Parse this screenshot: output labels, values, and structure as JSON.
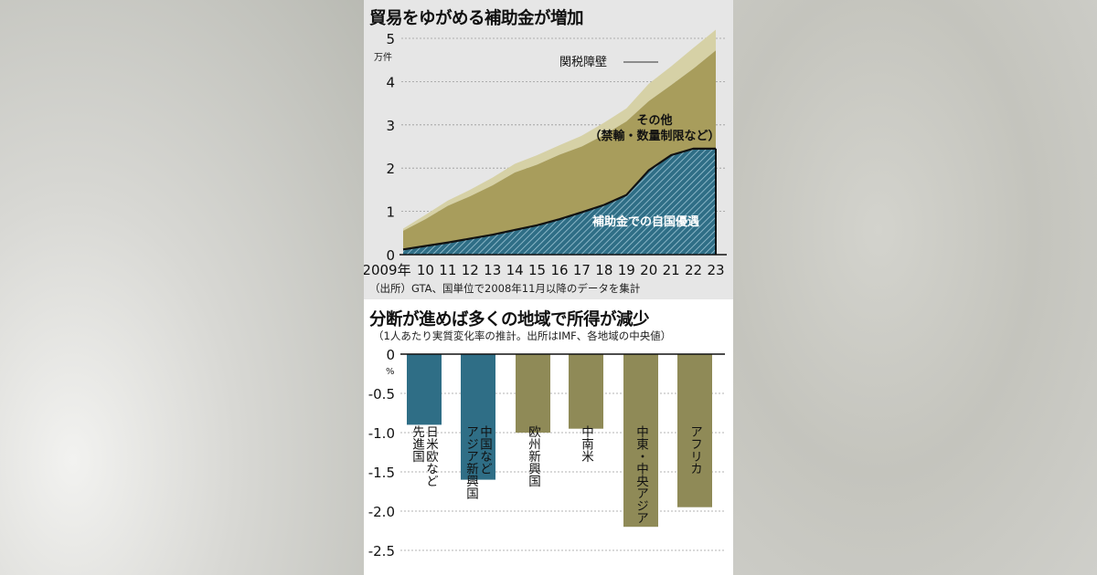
{
  "charts": {
    "top": {
      "title": "貿易をゆがめる補助金が増加",
      "unit": "万件",
      "source": "（出所）GTA、国単位で2008年11月以降のデータを集計"
    },
    "bottom": {
      "title": "分断が進めば多くの地域で所得が減少",
      "note": "（1人あたり実質変化率の推計。出所はIMF、各地域の中央値）",
      "unit": "%"
    }
  },
  "colors": {
    "tariff": "#d6d1a6",
    "other": "#a89d5c",
    "subsidy": "#2f6e86",
    "bar_advanced": "#2f6e86",
    "bar_other": "#8f8a57"
  },
  "chart_data": [
    {
      "type": "area",
      "title": "貿易をゆがめる補助金が増加",
      "x": [
        2009,
        2010,
        2011,
        2012,
        2013,
        2014,
        2015,
        2016,
        2017,
        2018,
        2019,
        2020,
        2021,
        2022,
        2023
      ],
      "x_tick_labels": [
        "2009年",
        "10",
        "11",
        "12",
        "13",
        "14",
        "15",
        "16",
        "17",
        "18",
        "19",
        "20",
        "21",
        "22",
        "23"
      ],
      "ylabel": "万件",
      "ylim": [
        0,
        5.2
      ],
      "y_ticks": [
        0,
        1,
        2,
        3,
        4,
        5
      ],
      "stacked": true,
      "series": [
        {
          "name": "補助金での自国優遇",
          "values": [
            0.12,
            0.2,
            0.28,
            0.37,
            0.46,
            0.57,
            0.68,
            0.82,
            0.98,
            1.15,
            1.38,
            1.95,
            2.3,
            2.45,
            2.45
          ],
          "hatched": true
        },
        {
          "name": "その他（禁輸・数量制限など）",
          "values": [
            0.43,
            0.62,
            0.85,
            0.98,
            1.14,
            1.33,
            1.4,
            1.49,
            1.52,
            1.62,
            1.7,
            1.6,
            1.62,
            1.85,
            2.27
          ]
        },
        {
          "name": "関税障壁",
          "values": [
            0.05,
            0.1,
            0.12,
            0.15,
            0.18,
            0.2,
            0.22,
            0.22,
            0.25,
            0.28,
            0.3,
            0.4,
            0.43,
            0.48,
            0.48
          ]
        }
      ]
    },
    {
      "type": "bar",
      "title": "分断が進めば多くの地域で所得が減少",
      "categories": [
        "日米欧など先進国",
        "中国などアジア新興国",
        "欧州新興国",
        "中南米",
        "中東・中央アジア",
        "アフリカ"
      ],
      "category_lines": [
        [
          "日米欧など",
          "先進国"
        ],
        [
          "中国など",
          "アジア新興国"
        ],
        [
          "欧州新興国"
        ],
        [
          "中南米"
        ],
        [
          "中東・中央アジア"
        ],
        [
          "アフリカ"
        ]
      ],
      "values": [
        -0.9,
        -1.6,
        -1.0,
        -0.95,
        -2.2,
        -1.95
      ],
      "ylabel": "%",
      "ylim": [
        -2.5,
        0
      ],
      "y_ticks": [
        0,
        -0.5,
        -1.0,
        -1.5,
        -2.0,
        -2.5
      ],
      "y_tick_labels": [
        "0",
        "-0.5",
        "-1.0",
        "-1.5",
        "-2.0",
        "-2.5"
      ],
      "highlight": [
        true,
        true,
        false,
        false,
        false,
        false
      ]
    }
  ]
}
